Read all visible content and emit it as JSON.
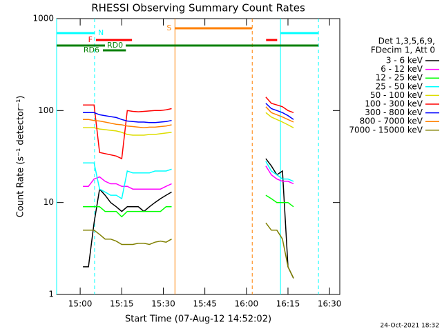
{
  "chart_data": {
    "type": "line",
    "title": "RHESSI Observing Summary Count Rates",
    "xlabel": "Start Time (07-Aug-12 14:52:02)",
    "ylabel": "Count Rate (s⁻¹ detector⁻¹)",
    "footer": "24-Oct-2021 18:32",
    "legend_header": [
      "Det 1,3,5,6,9,",
      "FDecim 1, Att 0"
    ],
    "log_y": true,
    "xlim": [
      891.5,
      993.7
    ],
    "ylim": [
      1,
      1000
    ],
    "yticks": [
      1,
      10,
      100,
      1000
    ],
    "xticks": [
      {
        "value": 900,
        "label": "15:00"
      },
      {
        "value": 915,
        "label": "15:15"
      },
      {
        "value": 930,
        "label": "15:30"
      },
      {
        "value": 945,
        "label": "15:45"
      },
      {
        "value": 960,
        "label": "16:00"
      },
      {
        "value": 975,
        "label": "16:15"
      },
      {
        "value": 990,
        "label": "16:30"
      }
    ],
    "x": [
      901,
      903,
      905,
      907,
      909,
      911,
      913,
      915,
      917,
      919,
      921,
      923,
      925,
      927,
      929,
      931,
      933,
      950,
      967,
      969,
      971,
      973,
      975,
      977
    ],
    "series": [
      {
        "name": "3 - 6 keV",
        "color": "#000000",
        "values": [
          2,
          2,
          6,
          14,
          12,
          10,
          9,
          8,
          9,
          9,
          9,
          8,
          9,
          10,
          11,
          12,
          13,
          null,
          30,
          25,
          20,
          22,
          2,
          1.5
        ]
      },
      {
        "name": "6 - 12 keV",
        "color": "#ff00ff",
        "values": [
          15,
          15,
          18,
          19,
          17,
          16,
          16,
          15,
          15,
          14,
          14,
          14,
          14,
          14,
          14,
          15,
          16,
          null,
          25,
          20,
          18,
          17,
          17,
          16
        ]
      },
      {
        "name": "12 - 25 keV",
        "color": "#00ff00",
        "values": [
          9,
          9,
          9,
          9,
          8,
          8,
          8,
          7,
          8,
          8,
          8,
          8,
          8,
          8,
          8,
          9,
          9,
          null,
          12,
          11,
          10,
          10,
          10,
          9
        ]
      },
      {
        "name": "25 - 50 keV",
        "color": "#00ffff",
        "values": [
          27,
          27,
          27,
          14,
          13,
          12,
          12,
          11,
          22,
          21,
          21,
          21,
          21,
          22,
          22,
          22,
          23,
          null,
          28,
          22,
          20,
          18,
          18,
          17
        ]
      },
      {
        "name": "50 - 100 keV",
        "color": "#dddd00",
        "values": [
          65,
          65,
          65,
          63,
          62,
          61,
          60,
          58,
          55,
          54,
          54,
          54,
          55,
          55,
          56,
          57,
          58,
          null,
          95,
          85,
          80,
          75,
          70,
          65
        ]
      },
      {
        "name": "100 - 300 keV",
        "color": "#ff0000",
        "values": [
          115,
          115,
          115,
          35,
          34,
          33,
          32,
          30,
          100,
          98,
          97,
          98,
          99,
          100,
          100,
          102,
          105,
          null,
          140,
          120,
          115,
          110,
          100,
          95
        ]
      },
      {
        "name": "300 - 800 keV",
        "color": "#0000ff",
        "values": [
          95,
          95,
          95,
          90,
          88,
          86,
          84,
          80,
          77,
          76,
          75,
          75,
          74,
          74,
          75,
          76,
          78,
          null,
          120,
          105,
          100,
          95,
          88,
          80
        ]
      },
      {
        "name": "800 - 7000 keV",
        "color": "#ff8000",
        "values": [
          80,
          80,
          78,
          77,
          75,
          73,
          71,
          70,
          68,
          67,
          66,
          65,
          66,
          66,
          67,
          68,
          70,
          null,
          110,
          95,
          90,
          85,
          80,
          75
        ]
      },
      {
        "name": "7000 - 15000 keV",
        "color": "#808000",
        "values": [
          5,
          5,
          5,
          4.5,
          4,
          4,
          3.8,
          3.5,
          3.5,
          3.5,
          3.6,
          3.6,
          3.5,
          3.7,
          3.8,
          3.7,
          4,
          null,
          6,
          5,
          5,
          4,
          2,
          1.5
        ]
      }
    ],
    "flags": [
      {
        "label": "N",
        "color": "#00ffff",
        "spans": [
          [
            891.5,
            905.2
          ],
          [
            972.3,
            986
          ]
        ]
      },
      {
        "label": "S",
        "color": "#ff8000",
        "spans": [
          [
            934.2,
            962.1
          ]
        ]
      },
      {
        "label": "F",
        "color": "#ff0000",
        "spans": [
          [
            905.7,
            918.7
          ],
          [
            967.1,
            971.1
          ]
        ]
      },
      {
        "label": "RD0",
        "color": "#008000",
        "spans": [
          [
            891.5,
            986
          ]
        ]
      },
      {
        "label": "RD6",
        "color": "#008000",
        "spans": [
          [
            908.2,
            916.5
          ]
        ]
      }
    ]
  }
}
